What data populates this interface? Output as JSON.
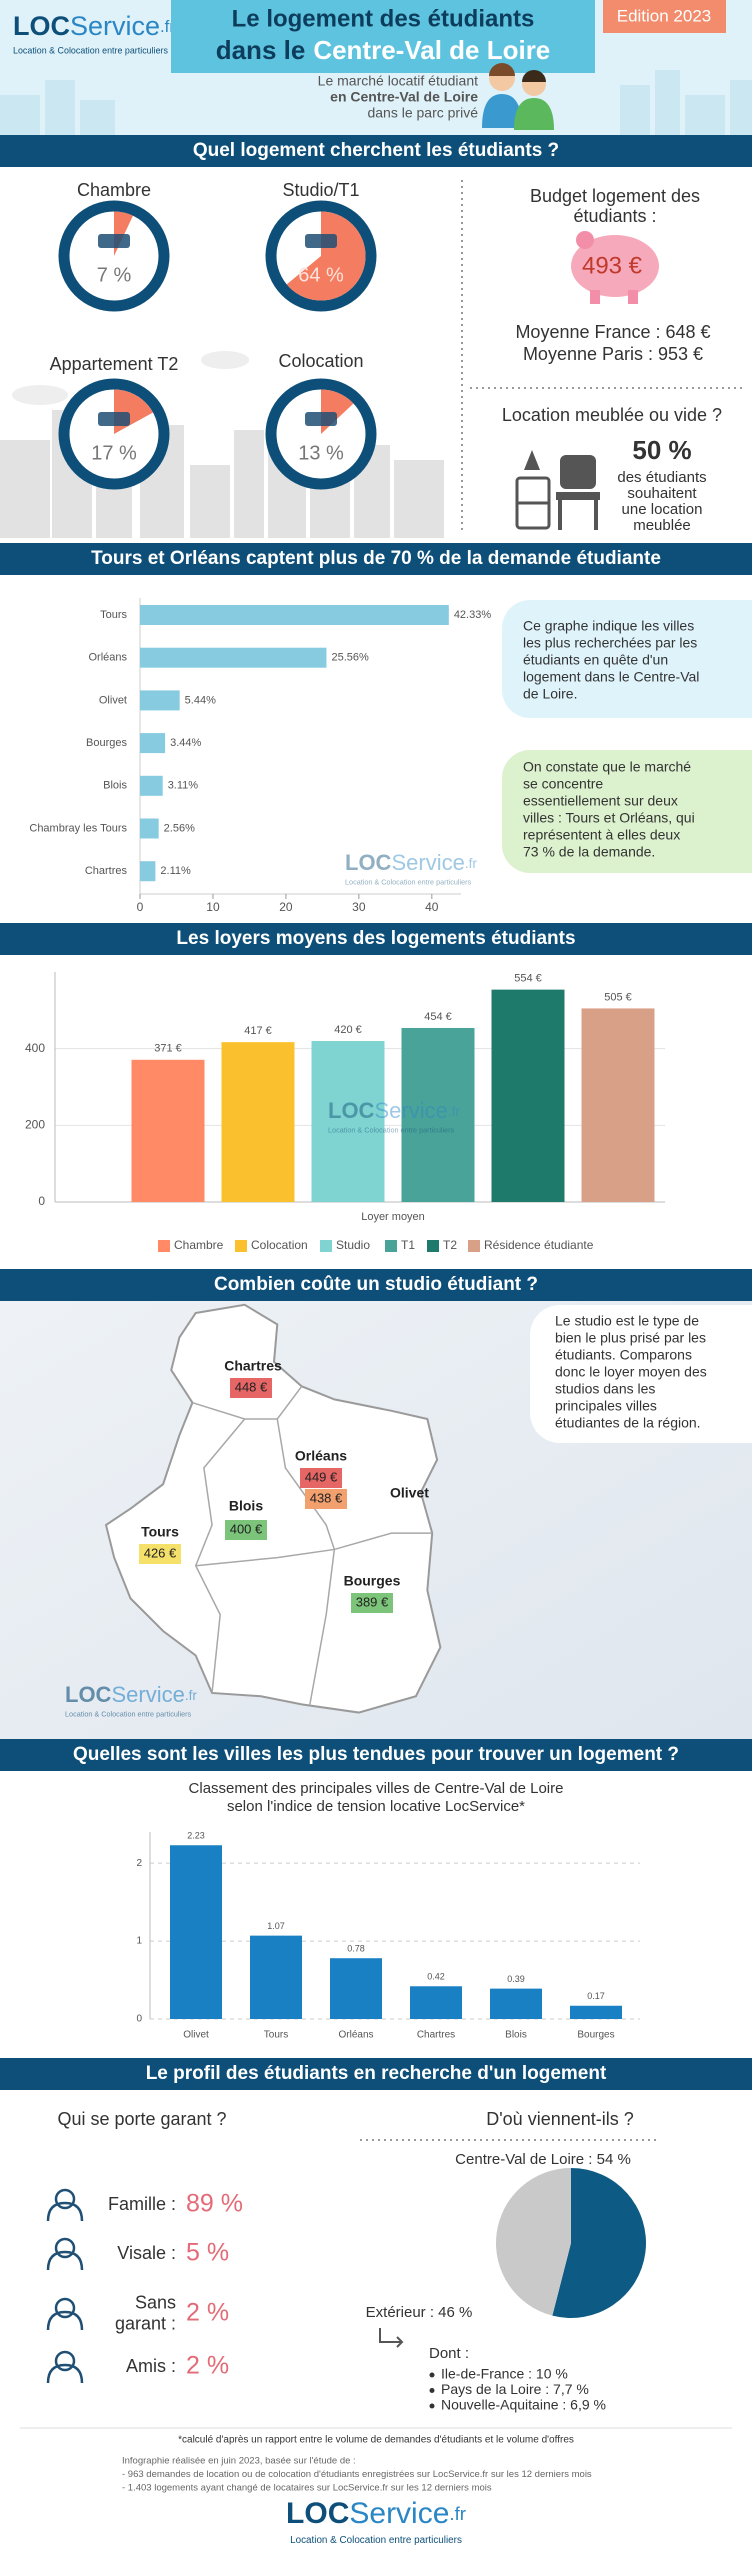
{
  "header": {
    "logo": {
      "brand_a": "LOC",
      "brand_b": "Service",
      "suffix": ".fr",
      "tagline": "Location & Colocation entre particuliers"
    },
    "title_line1": "Le logement des étudiants",
    "title_line2a": "dans le",
    "title_line2b": "Centre-Val de Loire",
    "edition": "Edition 2023",
    "subtitle": [
      "Le marché locatif étudiant",
      "en Centre-Val de Loire",
      "dans le parc privé"
    ]
  },
  "sections": [
    "Quel logement cherchent les étudiants ?",
    "Tours et Orléans captent plus de 70 % de la demande étudiante",
    "Les loyers moyens des logements étudiants",
    "Combien coûte un studio étudiant ?",
    "Quelles sont les villes les plus tendues pour trouver un logement  ?",
    "Le profil des étudiants en recherche d'un logement"
  ],
  "budget": {
    "title_lines": [
      "Budget logement des",
      "étudiants :"
    ],
    "amount": "493 €",
    "france": "Moyenne France : 648 €",
    "paris": "Moyenne Paris : 953 €"
  },
  "furnished": {
    "question": "Location meublée ou vide ?",
    "share": "50 %",
    "text": [
      "des étudiants",
      "souhaitent",
      "une location",
      "meublée"
    ]
  },
  "demand_notes": [
    [
      "Ce graphe indique les villes",
      "les plus recherchées par les",
      "étudiants en quête d'un",
      "logement dans le Centre-Val",
      "de Loire."
    ],
    [
      "On constate que le marché",
      "se concentre",
      "essentiellement sur deux",
      "villes : Tours et Orléans, qui",
      "représentent à elles deux",
      "73 % de la demande."
    ]
  ],
  "studio_map": {
    "intro": [
      "Le studio est le type de",
      "bien le plus prisé par les",
      "étudiants. Comparons",
      "donc le loyer moyen des",
      "studios dans les",
      "principales villes",
      "étudiantes de la région."
    ],
    "cities": [
      {
        "name": "Chartres",
        "price": "448 €"
      },
      {
        "name": "Orléans",
        "price": "449 €"
      },
      {
        "name": "Olivet",
        "price": "438 €"
      },
      {
        "name": "Blois",
        "price": "400 €"
      },
      {
        "name": "Tours",
        "price": "426 €"
      },
      {
        "name": "Bourges",
        "price": "389 €"
      }
    ]
  },
  "chart_data": [
    {
      "type": "donut",
      "categories": [
        "Chambre",
        "Studio/T1",
        "Appartement T2",
        "Colocation"
      ],
      "values": [
        7,
        64,
        17,
        13
      ],
      "value_labels": [
        "7 %",
        "64 %",
        "17 %",
        "13 %"
      ],
      "color": "#f47c60",
      "ring_color": "#0d4f79"
    },
    {
      "type": "hbar",
      "categories": [
        "Tours",
        "Orléans",
        "Olivet",
        "Bourges",
        "Blois",
        "Chambray les Tours",
        "Chartres"
      ],
      "values": [
        42.33,
        25.56,
        5.44,
        3.44,
        3.11,
        2.56,
        2.11
      ],
      "value_labels": [
        "42.33%",
        "25.56%",
        "5.44%",
        "3.44%",
        "3.11%",
        "2.56%",
        "2.11%"
      ],
      "xlim": [
        0,
        44
      ],
      "xticks": [
        0,
        10,
        20,
        30,
        40
      ],
      "color": "#86cbe0"
    },
    {
      "type": "bar",
      "categories": [
        "Chambre",
        "Colocation",
        "Studio",
        "T1",
        "T2",
        "Résidence étudiante"
      ],
      "values": [
        371,
        417,
        420,
        454,
        554,
        505
      ],
      "value_labels": [
        "371 €",
        "417 €",
        "420 €",
        "454 €",
        "554 €",
        "505 €"
      ],
      "colors": [
        "#ff8a65",
        "#fbc02d",
        "#7fd3d0",
        "#4aa399",
        "#1e7b6b",
        "#d9a088"
      ],
      "xlabel": "Loyer moyen",
      "ylim": [
        0,
        600
      ],
      "yticks": [
        0,
        200,
        400
      ],
      "grid": true,
      "legend": "bottom"
    },
    {
      "type": "bar",
      "subtitle": [
        "Classement des principales villes de Centre-Val de Loire",
        "selon l'indice de tension locative LocService*"
      ],
      "categories": [
        "Olivet",
        "Tours",
        "Orléans",
        "Chartres",
        "Blois",
        "Bourges"
      ],
      "values": [
        2.23,
        1.07,
        0.78,
        0.42,
        0.39,
        0.17
      ],
      "ylim": [
        0,
        2.4
      ],
      "yticks": [
        0,
        1,
        2
      ],
      "grid": true,
      "color": "#1a80c4"
    },
    {
      "type": "pie",
      "values": [
        54,
        46
      ],
      "value_labels": [
        "Centre-Val de Loire : 54 %",
        "Extérieur : 46 %"
      ],
      "colors": [
        "#0d5a84",
        "#c9c9c9"
      ]
    }
  ],
  "profile": {
    "guarantor_title": "Qui se porte garant ?",
    "guarantors": [
      {
        "label": [
          "Famille :"
        ],
        "value": "89 %"
      },
      {
        "label": [
          "Visale :"
        ],
        "value": "5 %"
      },
      {
        "label": [
          "Sans",
          "garant :"
        ],
        "value": "2 %"
      },
      {
        "label": [
          "Amis :"
        ],
        "value": "2 %"
      }
    ],
    "origin_title": "D'où viennent-ils ?",
    "among": "Dont :",
    "among_list": [
      "Ile-de-France : 10 %",
      "Pays de la Loire : 7,7 %",
      "Nouvelle-Aquitaine : 6,9 %"
    ]
  },
  "footer": {
    "note": "*calculé d'après un rapport entre le volume de demandes d'étudiants et le volume d'offres",
    "study": [
      "Infographie réalisée en juin 2023, basée sur l'étude de :",
      "- 963 demandes de location ou de colocation d'étudiants enregistrées sur LocService.fr sur les 12 derniers mois",
      "- 1.403 logements ayant changé de locataires sur LocService.fr sur les 12 derniers mois"
    ]
  }
}
